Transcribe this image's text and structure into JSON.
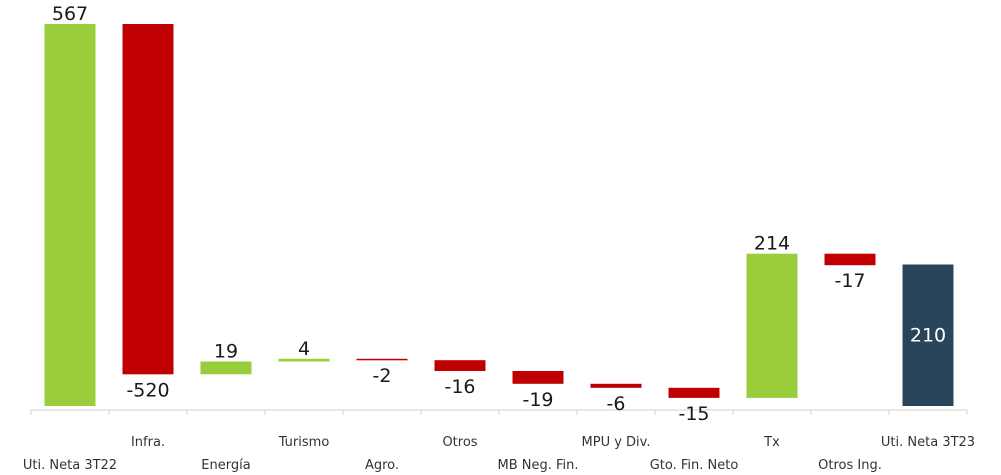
{
  "chart_data": {
    "type": "waterfall",
    "title": "",
    "xlabel": "",
    "ylabel": "",
    "ylim": [
      0,
      580
    ],
    "grid": false,
    "legend": "none",
    "categories": [
      "Uti. Neta 3T22",
      "Infra.",
      "Energía",
      "Turismo",
      "Agro.",
      "Otros",
      "MB Neg. Fin.",
      "MPU y Div.",
      "Gto. Fin. Neto",
      "Tx",
      "Otros Ing.",
      "Uti. Neta 3T23"
    ],
    "values": [
      567,
      -520,
      19,
      4,
      -2,
      -16,
      -19,
      -6,
      -15,
      214,
      -17,
      210
    ],
    "value_labels": [
      "567",
      "-520",
      "19",
      "4",
      "-2",
      "-16",
      "-19",
      "-6",
      "-15",
      "214",
      "-17",
      "210"
    ],
    "kinds": [
      "total",
      "delta",
      "delta",
      "delta",
      "delta",
      "delta",
      "delta",
      "delta",
      "delta",
      "delta",
      "delta",
      "total"
    ],
    "colors": {
      "start_total": "#9acd3b",
      "increase": "#9acd3b",
      "decrease": "#c00000",
      "end_total": "#2a4459",
      "axis": "#d0d0d0"
    }
  }
}
